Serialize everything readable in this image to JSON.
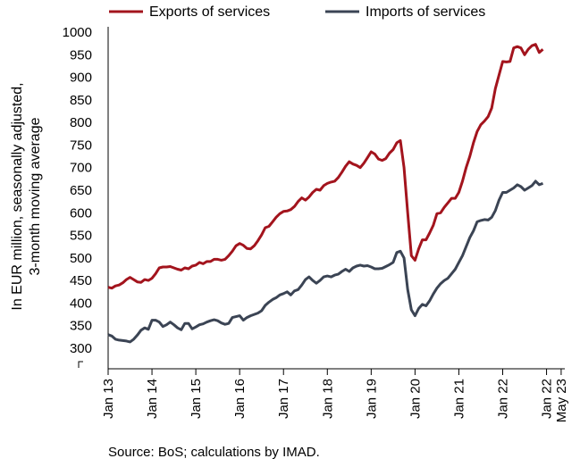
{
  "chart_data": {
    "type": "line",
    "ylabel_lines": [
      "In EUR million, seasonally adjusted,",
      "3-month moving average"
    ],
    "ylim": [
      250,
      1000
    ],
    "y_ticks": [
      1000,
      950,
      900,
      850,
      800,
      750,
      700,
      650,
      600,
      550,
      500,
      450,
      400,
      350,
      300
    ],
    "x_tick_labels": [
      "Jan 13",
      "Jan 14",
      "Jan 15",
      "Jan 16",
      "Jan 17",
      "Jan 18",
      "Jan 19",
      "Jan 20",
      "Jan 21",
      "Jan 22",
      "Jan 22",
      "May 23"
    ],
    "x_tick_index": [
      0,
      12,
      24,
      36,
      48,
      60,
      72,
      84,
      96,
      108,
      120,
      124
    ],
    "x_range": [
      0,
      125
    ],
    "legend_position": "top-left",
    "source": "Source: BoS; calculations by IMAD.",
    "series": [
      {
        "name": "Exports of services",
        "color": "#a3141d",
        "values": [
          435,
          433,
          438,
          440,
          445,
          452,
          457,
          452,
          447,
          446,
          452,
          450,
          455,
          465,
          478,
          480,
          480,
          481,
          478,
          475,
          473,
          478,
          476,
          482,
          484,
          490,
          487,
          492,
          492,
          497,
          497,
          495,
          497,
          505,
          515,
          527,
          532,
          528,
          521,
          520,
          527,
          538,
          551,
          567,
          570,
          580,
          590,
          598,
          603,
          604,
          607,
          614,
          625,
          633,
          628,
          635,
          645,
          652,
          650,
          660,
          665,
          668,
          670,
          678,
          690,
          703,
          713,
          708,
          705,
          700,
          710,
          722,
          735,
          730,
          719,
          716,
          720,
          732,
          740,
          755,
          760,
          700,
          600,
          505,
          495,
          520,
          540,
          540,
          555,
          572,
          598,
          600,
          612,
          622,
          632,
          632,
          645,
          670,
          700,
          725,
          755,
          780,
          795,
          803,
          813,
          832,
          875,
          905,
          935,
          934,
          935,
          965,
          968,
          965,
          950,
          962,
          970,
          973,
          955,
          962
        ]
      },
      {
        "name": "Imports of services",
        "color": "#3b4454",
        "values": [
          330,
          327,
          320,
          318,
          317,
          316,
          314,
          320,
          329,
          340,
          345,
          342,
          362,
          362,
          358,
          348,
          352,
          358,
          352,
          345,
          341,
          355,
          355,
          343,
          347,
          352,
          354,
          358,
          361,
          363,
          361,
          356,
          353,
          355,
          368,
          370,
          372,
          362,
          368,
          372,
          375,
          378,
          383,
          395,
          402,
          408,
          412,
          418,
          421,
          425,
          418,
          427,
          430,
          440,
          452,
          458,
          450,
          444,
          450,
          458,
          460,
          458,
          462,
          464,
          470,
          475,
          470,
          478,
          482,
          484,
          482,
          483,
          480,
          476,
          476,
          477,
          481,
          485,
          490,
          512,
          515,
          500,
          430,
          385,
          372,
          388,
          397,
          394,
          405,
          420,
          433,
          443,
          450,
          455,
          465,
          475,
          490,
          505,
          525,
          545,
          560,
          580,
          583,
          585,
          584,
          590,
          605,
          628,
          645,
          645,
          650,
          655,
          662,
          658,
          650,
          655,
          660,
          670,
          662,
          665
        ]
      }
    ]
  }
}
